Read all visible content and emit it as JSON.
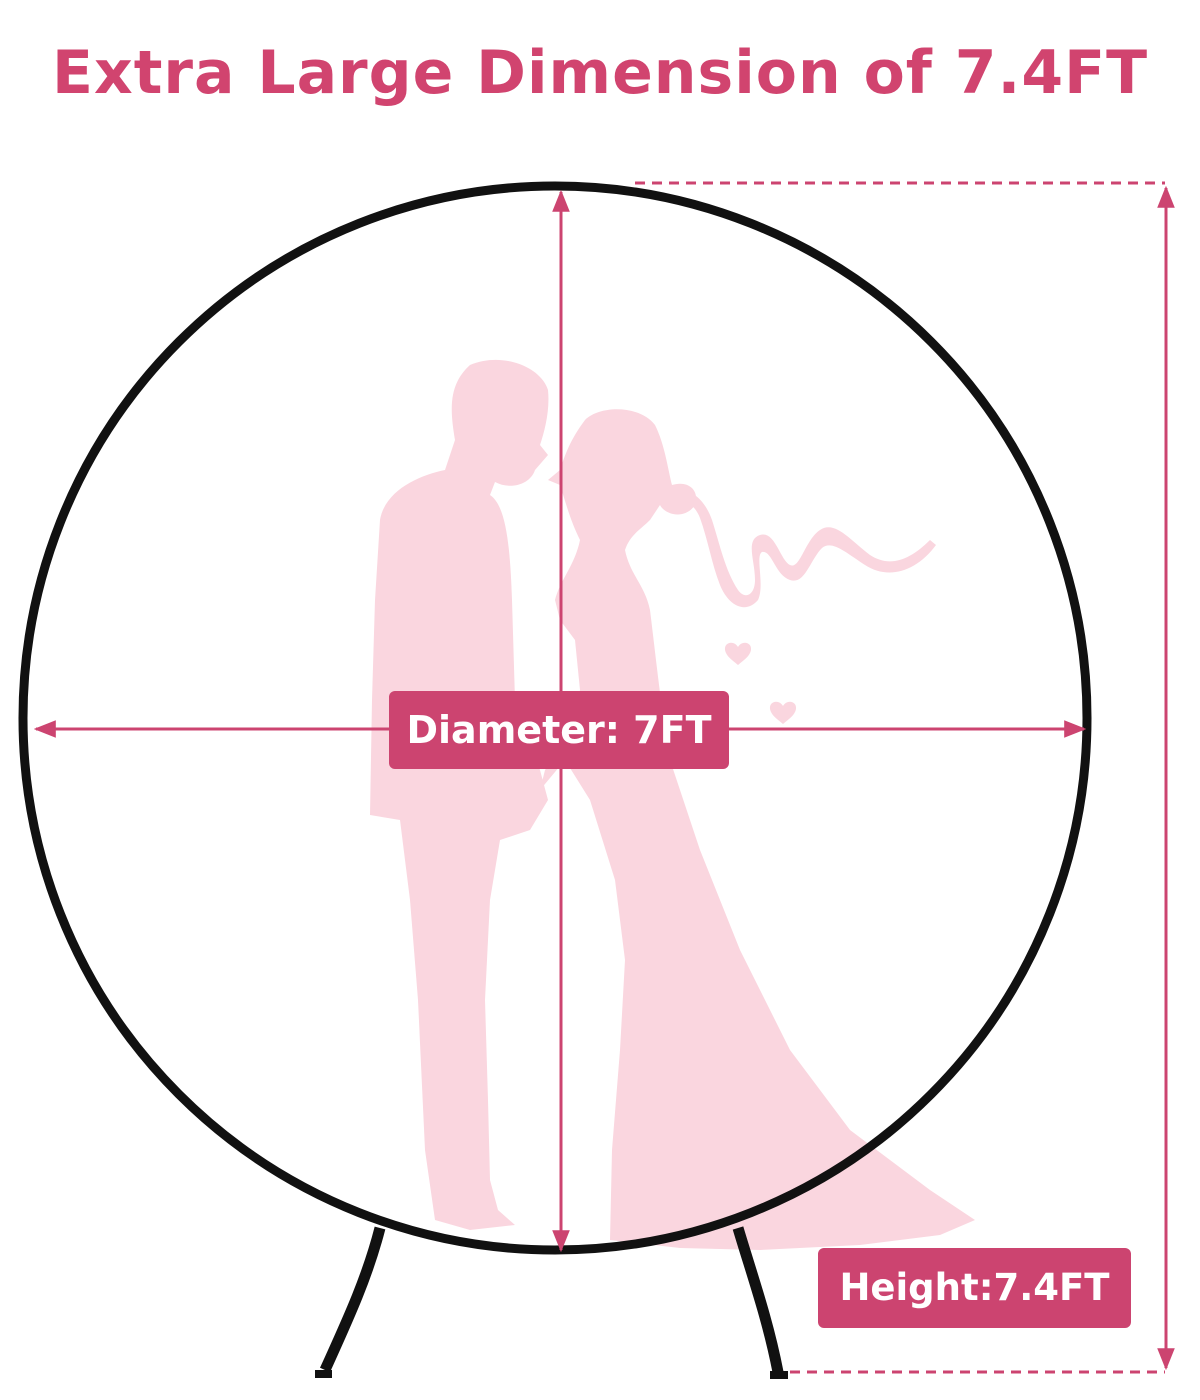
{
  "headline": "Extra Large Dimension of 7.4FT",
  "labels": {
    "diameter": "Diameter: 7FT",
    "height": "Height:7.4FT"
  },
  "colors": {
    "accent": "#cc4470",
    "headline": "#d1446f",
    "silhouette": "#fad6df",
    "frame": "#111111",
    "dimension_line": "#cc4470"
  },
  "icons": {
    "couple": "wedding-couple-silhouette",
    "frame": "round-arch-frame"
  }
}
